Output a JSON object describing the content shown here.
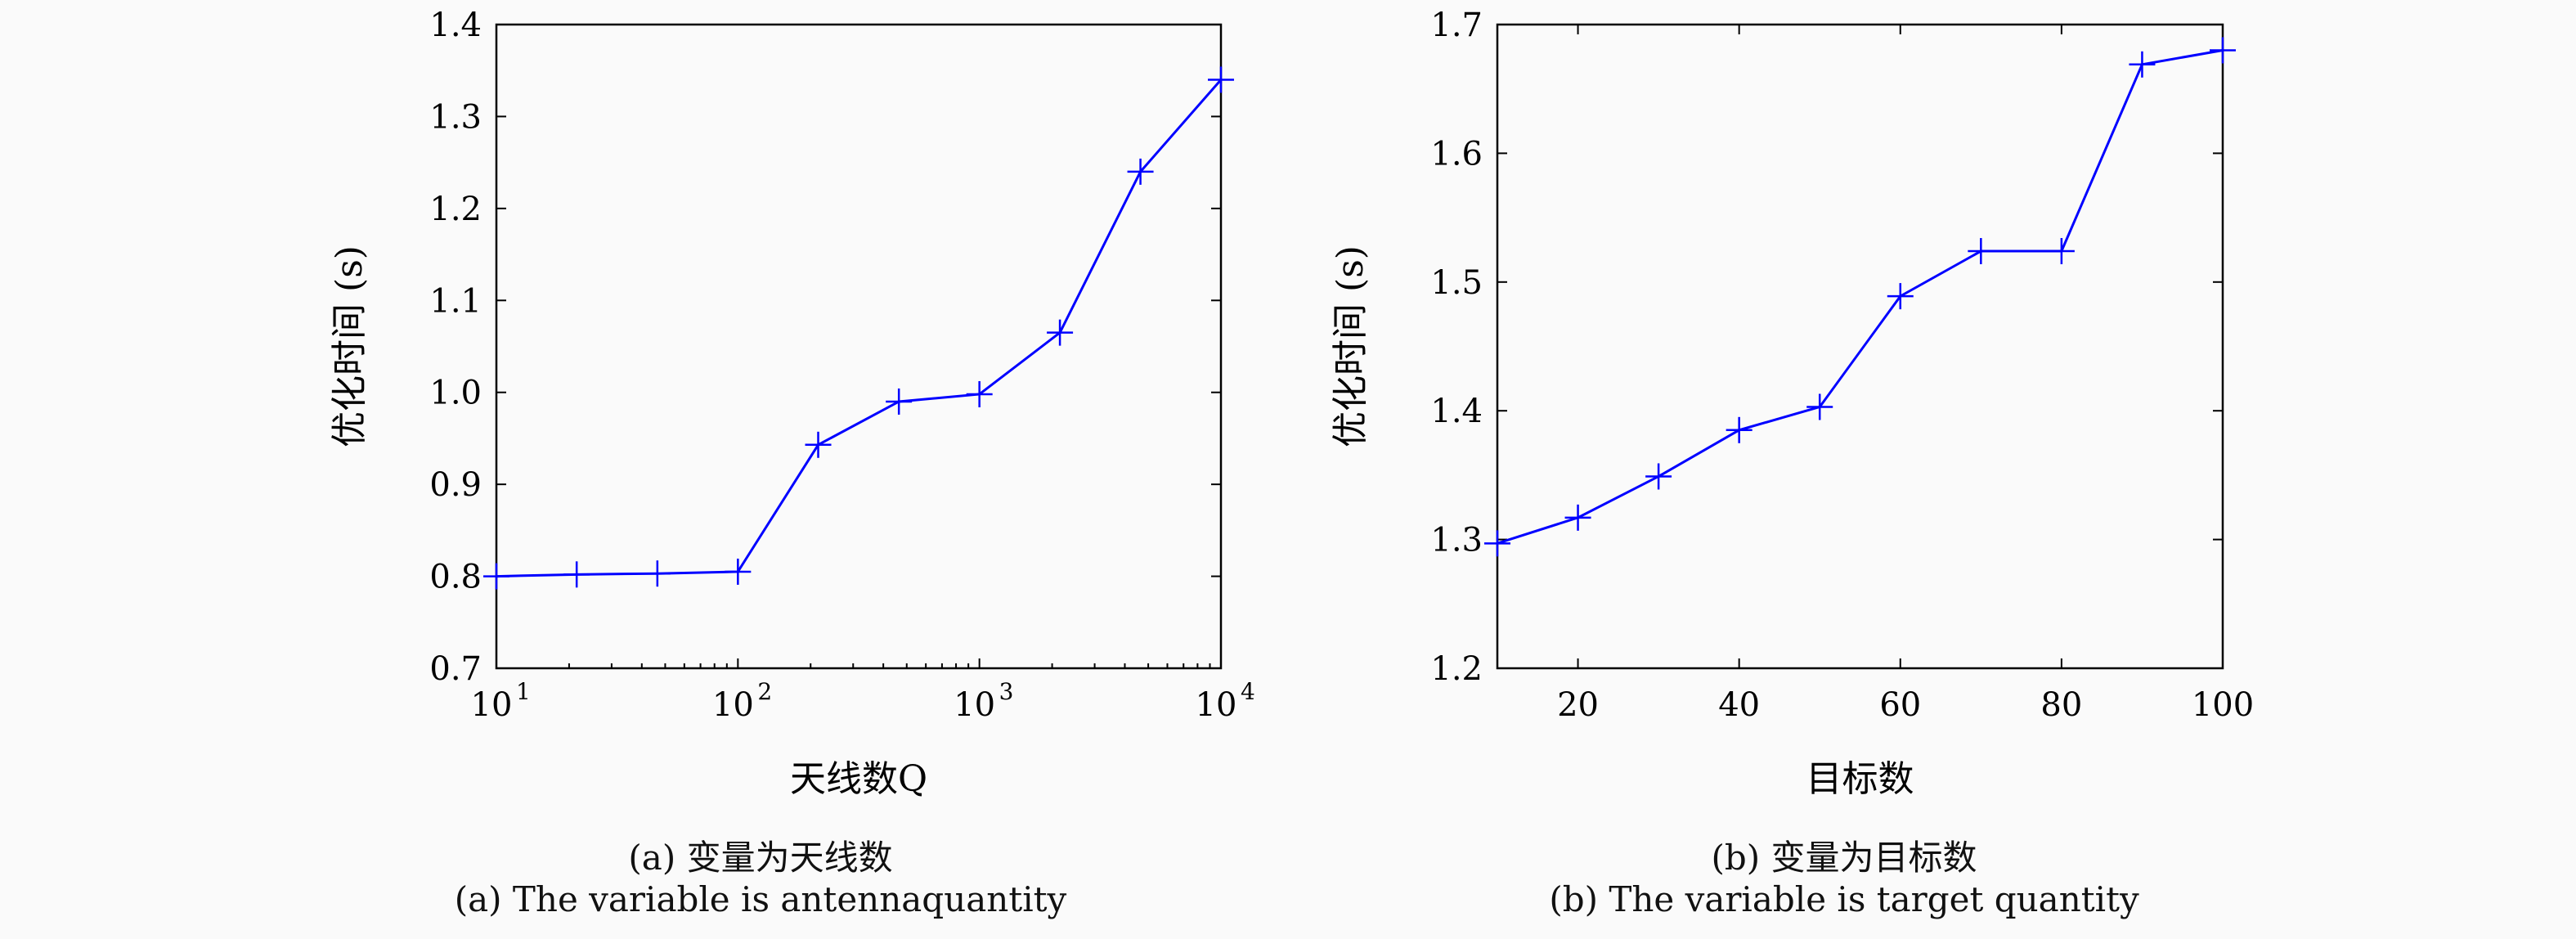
{
  "chart_data": [
    {
      "type": "line",
      "x_scale": "log",
      "x": [
        10,
        21.5,
        46.4,
        100,
        215,
        464,
        1000,
        2154,
        4642,
        10000
      ],
      "series": [
        {
          "name": "优化时间",
          "color": "#0000ff",
          "marker": "+",
          "values": [
            0.8,
            0.802,
            0.803,
            0.805,
            0.943,
            0.99,
            0.998,
            1.065,
            1.24,
            1.34
          ]
        }
      ],
      "xlabel": "天线数Q",
      "ylabel": "优化时间 (s)",
      "xlim": [
        10,
        10000
      ],
      "ylim": [
        0.7,
        1.4
      ],
      "xticks": [
        {
          "v": 10,
          "base": "10",
          "exp": "1"
        },
        {
          "v": 100,
          "base": "10",
          "exp": "2"
        },
        {
          "v": 1000,
          "base": "10",
          "exp": "3"
        },
        {
          "v": 10000,
          "base": "10",
          "exp": "4"
        }
      ],
      "yticks": [
        "0.7",
        "0.8",
        "0.9",
        "1.0",
        "1.1",
        "1.2",
        "1.3",
        "1.4"
      ],
      "caption_cn": "(a) 变量为天线数",
      "caption_en": "(a) The variable is antennaquantity"
    },
    {
      "type": "line",
      "x_scale": "linear",
      "x": [
        10,
        20,
        30,
        40,
        50,
        60,
        70,
        80,
        90,
        100
      ],
      "series": [
        {
          "name": "优化时间",
          "color": "#0000ff",
          "marker": "+",
          "values": [
            1.297,
            1.317,
            1.349,
            1.385,
            1.403,
            1.489,
            1.524,
            1.524,
            1.669,
            1.68
          ]
        }
      ],
      "xlabel": "目标数",
      "ylabel": "优化时间 (s)",
      "xlim": [
        10,
        100
      ],
      "ylim": [
        1.2,
        1.7
      ],
      "xticks": [
        "20",
        "40",
        "60",
        "80",
        "100"
      ],
      "yticks": [
        "1.2",
        "1.3",
        "1.4",
        "1.5",
        "1.6",
        "1.7"
      ],
      "caption_cn": "(b) 变量为目标数",
      "caption_en": "(b) The variable is target quantity"
    }
  ]
}
